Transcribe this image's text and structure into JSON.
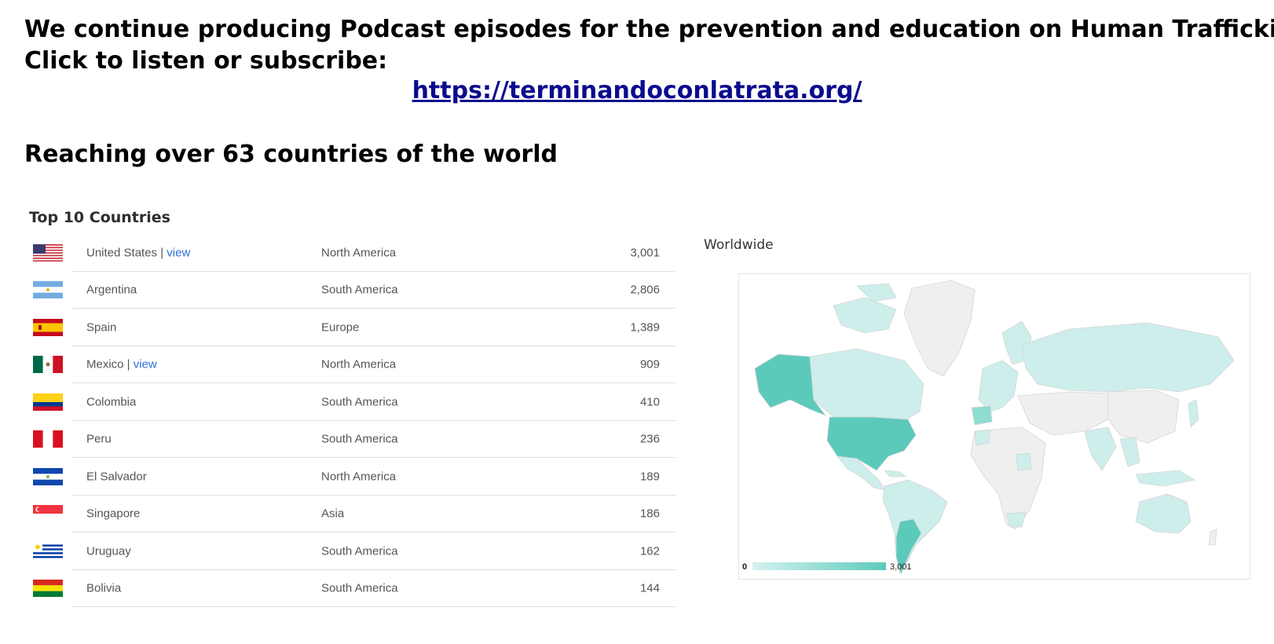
{
  "header": {
    "line1": "We continue producing Podcast episodes for the prevention and education on Human Trafficking",
    "line2": "Click to listen or subscribe:",
    "url": "https://terminandoconlatrata.org/",
    "reach": "Reaching over 63 countries of the world"
  },
  "table": {
    "title": "Top 10 Countries",
    "rows": [
      {
        "country": "United States",
        "link": "view",
        "region": "North America",
        "count": "3,001"
      },
      {
        "country": "Argentina",
        "link": "",
        "region": "South America",
        "count": "2,806"
      },
      {
        "country": "Spain",
        "link": "",
        "region": "Europe",
        "count": "1,389"
      },
      {
        "country": "Mexico",
        "link": "view",
        "region": "North America",
        "count": "909"
      },
      {
        "country": "Colombia",
        "link": "",
        "region": "South America",
        "count": "410"
      },
      {
        "country": "Peru",
        "link": "",
        "region": "South America",
        "count": "236"
      },
      {
        "country": "El Salvador",
        "link": "",
        "region": "North America",
        "count": "189"
      },
      {
        "country": "Singapore",
        "link": "",
        "region": "Asia",
        "count": "186"
      },
      {
        "country": "Uruguay",
        "link": "",
        "region": "South America",
        "count": "162"
      },
      {
        "country": "Bolivia",
        "link": "",
        "region": "South America",
        "count": "144"
      }
    ]
  },
  "map": {
    "title": "Worldwide",
    "legend_min": "0",
    "legend_max": "3,001",
    "colors": {
      "low": "#cdeeea",
      "high": "#5ccabb",
      "no_data": "#efefef",
      "border": "#d6d6d6"
    }
  }
}
